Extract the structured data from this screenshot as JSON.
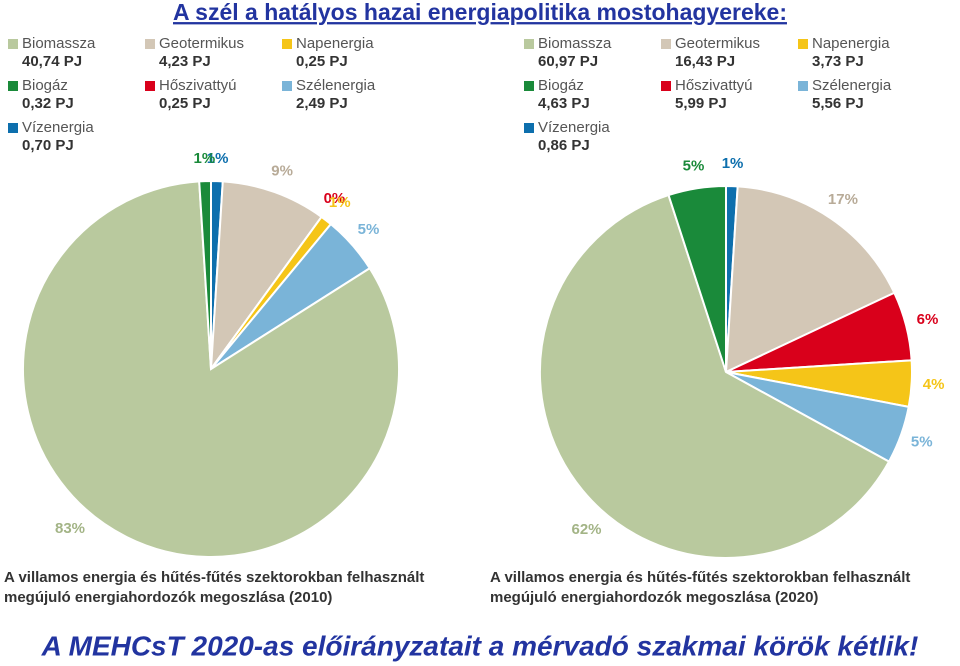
{
  "title": "A szél a hatályos hazai energiapolitika mostohagyereke:",
  "footer": "A MEHCsT 2020-as előirányzatait a mérvadó szakmai körök kétlik!",
  "chart_data": [
    {
      "type": "pie",
      "caption": [
        "A villamos energia és hűtés-fűtés szektorokban felhasznált",
        "megújuló energiahordozók megoszlása (2010)"
      ],
      "categories": [
        "Vízenergia",
        "Geotermikus",
        "Hőszivattyú",
        "Napenergia",
        "Szélenergia",
        "Biomassza",
        "Biogáz"
      ],
      "amounts": [
        "0,70 PJ",
        "4,23 PJ",
        "0,25 PJ",
        "0,25 PJ",
        "2,49 PJ",
        "40,74 PJ",
        "0,32 PJ"
      ],
      "values": [
        1,
        9,
        0,
        1,
        5,
        83,
        1
      ],
      "value_labels": [
        "1%",
        "9%",
        "0%",
        "1%",
        "5%",
        "83%",
        "1%"
      ],
      "colors": [
        "#0d6fad",
        "#d3c7b6",
        "#d9001b",
        "#f5c518",
        "#7ab4d8",
        "#b9c99e",
        "#1a8a3a"
      ]
    },
    {
      "type": "pie",
      "caption": [
        "A villamos energia és hűtés-fűtés szektorokban felhasznált",
        "megújuló energiahordozók megoszlása (2020)"
      ],
      "categories": [
        "Vízenergia",
        "Geotermikus",
        "Hőszivattyú",
        "Napenergia",
        "Szélenergia",
        "Biomassza",
        "Biogáz"
      ],
      "amounts": [
        "0,86 PJ",
        "16,43 PJ",
        "5,99 PJ",
        "3,73 PJ",
        "5,56 PJ",
        "60,97 PJ",
        "4,63 PJ"
      ],
      "values": [
        1,
        17,
        6,
        4,
        5,
        62,
        5
      ],
      "value_labels": [
        "1%",
        "17%",
        "6%",
        "4%",
        "5%",
        "62%",
        "5%"
      ],
      "colors": [
        "#0d6fad",
        "#d3c7b6",
        "#d9001b",
        "#f5c518",
        "#7ab4d8",
        "#b9c99e",
        "#1a8a3a"
      ]
    }
  ]
}
